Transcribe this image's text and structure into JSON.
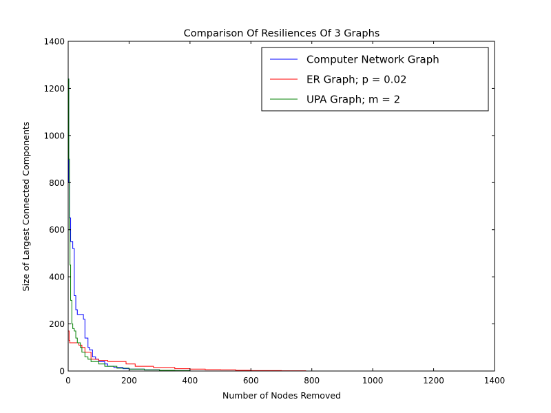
{
  "chart_data": {
    "type": "line",
    "title": "Comparison Of Resiliences Of 3 Graphs",
    "xlabel": "Number of Nodes Removed",
    "ylabel": "Size of Largest Connected Components",
    "xlim": [
      0,
      1400
    ],
    "ylim": [
      0,
      1400
    ],
    "xticks": [
      0,
      200,
      400,
      600,
      800,
      1000,
      1200,
      1400
    ],
    "yticks": [
      0,
      200,
      400,
      600,
      800,
      1000,
      1200,
      1400
    ],
    "grid": false,
    "legend_position": "top-right",
    "series": [
      {
        "name": "Computer Network Graph",
        "color": "#0000ff",
        "step": true,
        "points": [
          [
            0,
            1240
          ],
          [
            2,
            800
          ],
          [
            4,
            650
          ],
          [
            8,
            550
          ],
          [
            12,
            550
          ],
          [
            15,
            520
          ],
          [
            20,
            320
          ],
          [
            25,
            260
          ],
          [
            30,
            240
          ],
          [
            45,
            240
          ],
          [
            50,
            220
          ],
          [
            55,
            140
          ],
          [
            60,
            140
          ],
          [
            65,
            100
          ],
          [
            70,
            90
          ],
          [
            80,
            60
          ],
          [
            90,
            50
          ],
          [
            100,
            40
          ],
          [
            120,
            30
          ],
          [
            130,
            20
          ],
          [
            150,
            15
          ],
          [
            180,
            10
          ],
          [
            200,
            8
          ],
          [
            250,
            5
          ],
          [
            300,
            3
          ],
          [
            350,
            2
          ],
          [
            400,
            1
          ]
        ]
      },
      {
        "name": "ER Graph; p = 0.02",
        "color": "#ff0000",
        "step": true,
        "points": [
          [
            0,
            170
          ],
          [
            3,
            130
          ],
          [
            5,
            120
          ],
          [
            30,
            120
          ],
          [
            35,
            110
          ],
          [
            45,
            100
          ],
          [
            55,
            80
          ],
          [
            75,
            50
          ],
          [
            100,
            45
          ],
          [
            130,
            40
          ],
          [
            190,
            30
          ],
          [
            220,
            20
          ],
          [
            280,
            15
          ],
          [
            350,
            10
          ],
          [
            400,
            8
          ],
          [
            450,
            6
          ],
          [
            500,
            5
          ],
          [
            550,
            3
          ],
          [
            600,
            2
          ],
          [
            700,
            1
          ],
          [
            780,
            0
          ]
        ]
      },
      {
        "name": "UPA Graph; m = 2",
        "color": "#008000",
        "step": true,
        "points": [
          [
            0,
            1240
          ],
          [
            2,
            900
          ],
          [
            4,
            600
          ],
          [
            6,
            450
          ],
          [
            8,
            300
          ],
          [
            12,
            200
          ],
          [
            15,
            180
          ],
          [
            20,
            170
          ],
          [
            25,
            140
          ],
          [
            30,
            120
          ],
          [
            40,
            100
          ],
          [
            45,
            80
          ],
          [
            55,
            60
          ],
          [
            65,
            50
          ],
          [
            75,
            40
          ],
          [
            100,
            30
          ],
          [
            120,
            20
          ],
          [
            160,
            12
          ],
          [
            200,
            8
          ],
          [
            250,
            5
          ],
          [
            300,
            3
          ],
          [
            350,
            2
          ],
          [
            400,
            1
          ]
        ]
      }
    ]
  }
}
